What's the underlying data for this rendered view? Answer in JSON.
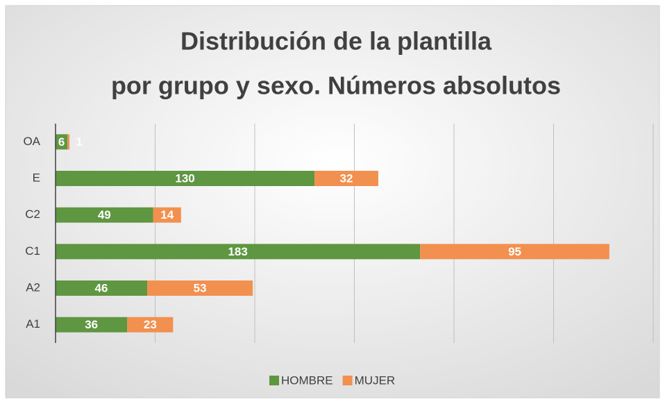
{
  "chart_data": {
    "type": "stacked-bar-horizontal",
    "title": [
      "Distribución de la plantilla",
      "por grupo y sexo. Números absolutos"
    ],
    "categories": [
      "OA",
      "E",
      "C2",
      "C1",
      "A2",
      "A1"
    ],
    "series": [
      {
        "name": "HOMBRE",
        "color": "#5e9641",
        "values": [
          6,
          130,
          49,
          183,
          46,
          36
        ]
      },
      {
        "name": "MUJER",
        "color": "#f2904f",
        "values": [
          1,
          32,
          14,
          95,
          53,
          23
        ]
      }
    ],
    "xlim": [
      0,
      300
    ],
    "xticks": [
      0,
      50,
      100,
      150,
      200,
      250,
      300
    ],
    "grid": true,
    "tick_labels": false,
    "legend": "bottom"
  }
}
